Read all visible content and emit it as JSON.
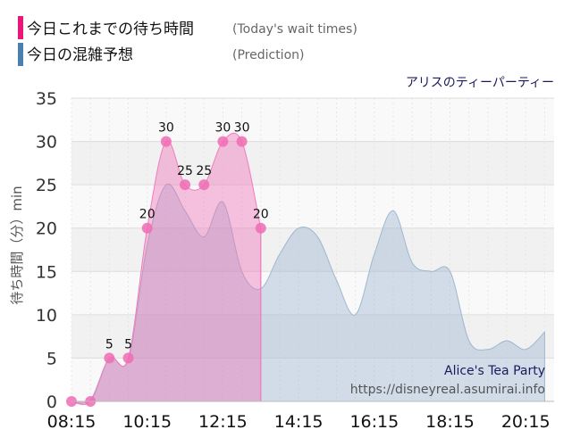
{
  "legend": [
    {
      "label": "今日これまでの待ち時間",
      "sub": "(Today's wait times)",
      "color": "#e8187a"
    },
    {
      "label": "今日の混雑予想",
      "sub": "(Prediction)",
      "color": "#4a7fb0"
    }
  ],
  "attraction_title": "アリスのティーパーティー",
  "watermark": {
    "name": "Alice's Tea Party",
    "url": "https://disneyreal.asumirai.info"
  },
  "chart_data": {
    "type": "area",
    "ylabel": "待ち時間（分）min",
    "ylim": [
      0,
      35
    ],
    "yticks": [
      0,
      5,
      10,
      15,
      20,
      25,
      30,
      35
    ],
    "xlim": [
      "08:15",
      "21:00"
    ],
    "xticks": [
      "08:15",
      "10:15",
      "12:15",
      "14:15",
      "16:15",
      "18:15",
      "20:15"
    ],
    "grid": true,
    "series": [
      {
        "name": "今日これまでの待ち時間",
        "color": "#f06cb4",
        "points": [
          {
            "x": "08:15",
            "y": 0
          },
          {
            "x": "08:45",
            "y": 0
          },
          {
            "x": "09:15",
            "y": 5
          },
          {
            "x": "09:45",
            "y": 5
          },
          {
            "x": "10:15",
            "y": 20
          },
          {
            "x": "10:45",
            "y": 30
          },
          {
            "x": "11:15",
            "y": 25
          },
          {
            "x": "11:45",
            "y": 25
          },
          {
            "x": "12:15",
            "y": 30
          },
          {
            "x": "12:45",
            "y": 30
          },
          {
            "x": "13:15",
            "y": 20
          }
        ],
        "labels": [
          {
            "x": "09:15",
            "y": 5,
            "text": "5"
          },
          {
            "x": "09:45",
            "y": 5,
            "text": "5"
          },
          {
            "x": "10:15",
            "y": 20,
            "text": "20"
          },
          {
            "x": "10:45",
            "y": 30,
            "text": "30"
          },
          {
            "x": "11:15",
            "y": 25,
            "text": "25"
          },
          {
            "x": "11:45",
            "y": 25,
            "text": "25"
          },
          {
            "x": "12:15",
            "y": 30,
            "text": "30"
          },
          {
            "x": "12:45",
            "y": 30,
            "text": "30"
          },
          {
            "x": "13:15",
            "y": 20,
            "text": "20"
          }
        ]
      },
      {
        "name": "今日の混雑予想",
        "color": "#9fb8cf",
        "points": [
          {
            "x": "08:15",
            "y": 0
          },
          {
            "x": "08:45",
            "y": 0.2
          },
          {
            "x": "09:15",
            "y": 5
          },
          {
            "x": "09:45",
            "y": 4.8
          },
          {
            "x": "10:15",
            "y": 18
          },
          {
            "x": "10:45",
            "y": 25
          },
          {
            "x": "11:15",
            "y": 22
          },
          {
            "x": "11:45",
            "y": 19
          },
          {
            "x": "12:15",
            "y": 23
          },
          {
            "x": "12:45",
            "y": 15
          },
          {
            "x": "13:15",
            "y": 13
          },
          {
            "x": "13:45",
            "y": 17
          },
          {
            "x": "14:15",
            "y": 20
          },
          {
            "x": "14:45",
            "y": 19
          },
          {
            "x": "15:15",
            "y": 14
          },
          {
            "x": "15:45",
            "y": 10
          },
          {
            "x": "16:15",
            "y": 17
          },
          {
            "x": "16:45",
            "y": 22
          },
          {
            "x": "17:15",
            "y": 16
          },
          {
            "x": "17:45",
            "y": 15
          },
          {
            "x": "18:15",
            "y": 15
          },
          {
            "x": "18:45",
            "y": 7
          },
          {
            "x": "19:15",
            "y": 6
          },
          {
            "x": "19:45",
            "y": 7
          },
          {
            "x": "20:15",
            "y": 6
          },
          {
            "x": "20:45",
            "y": 8
          }
        ]
      }
    ]
  }
}
